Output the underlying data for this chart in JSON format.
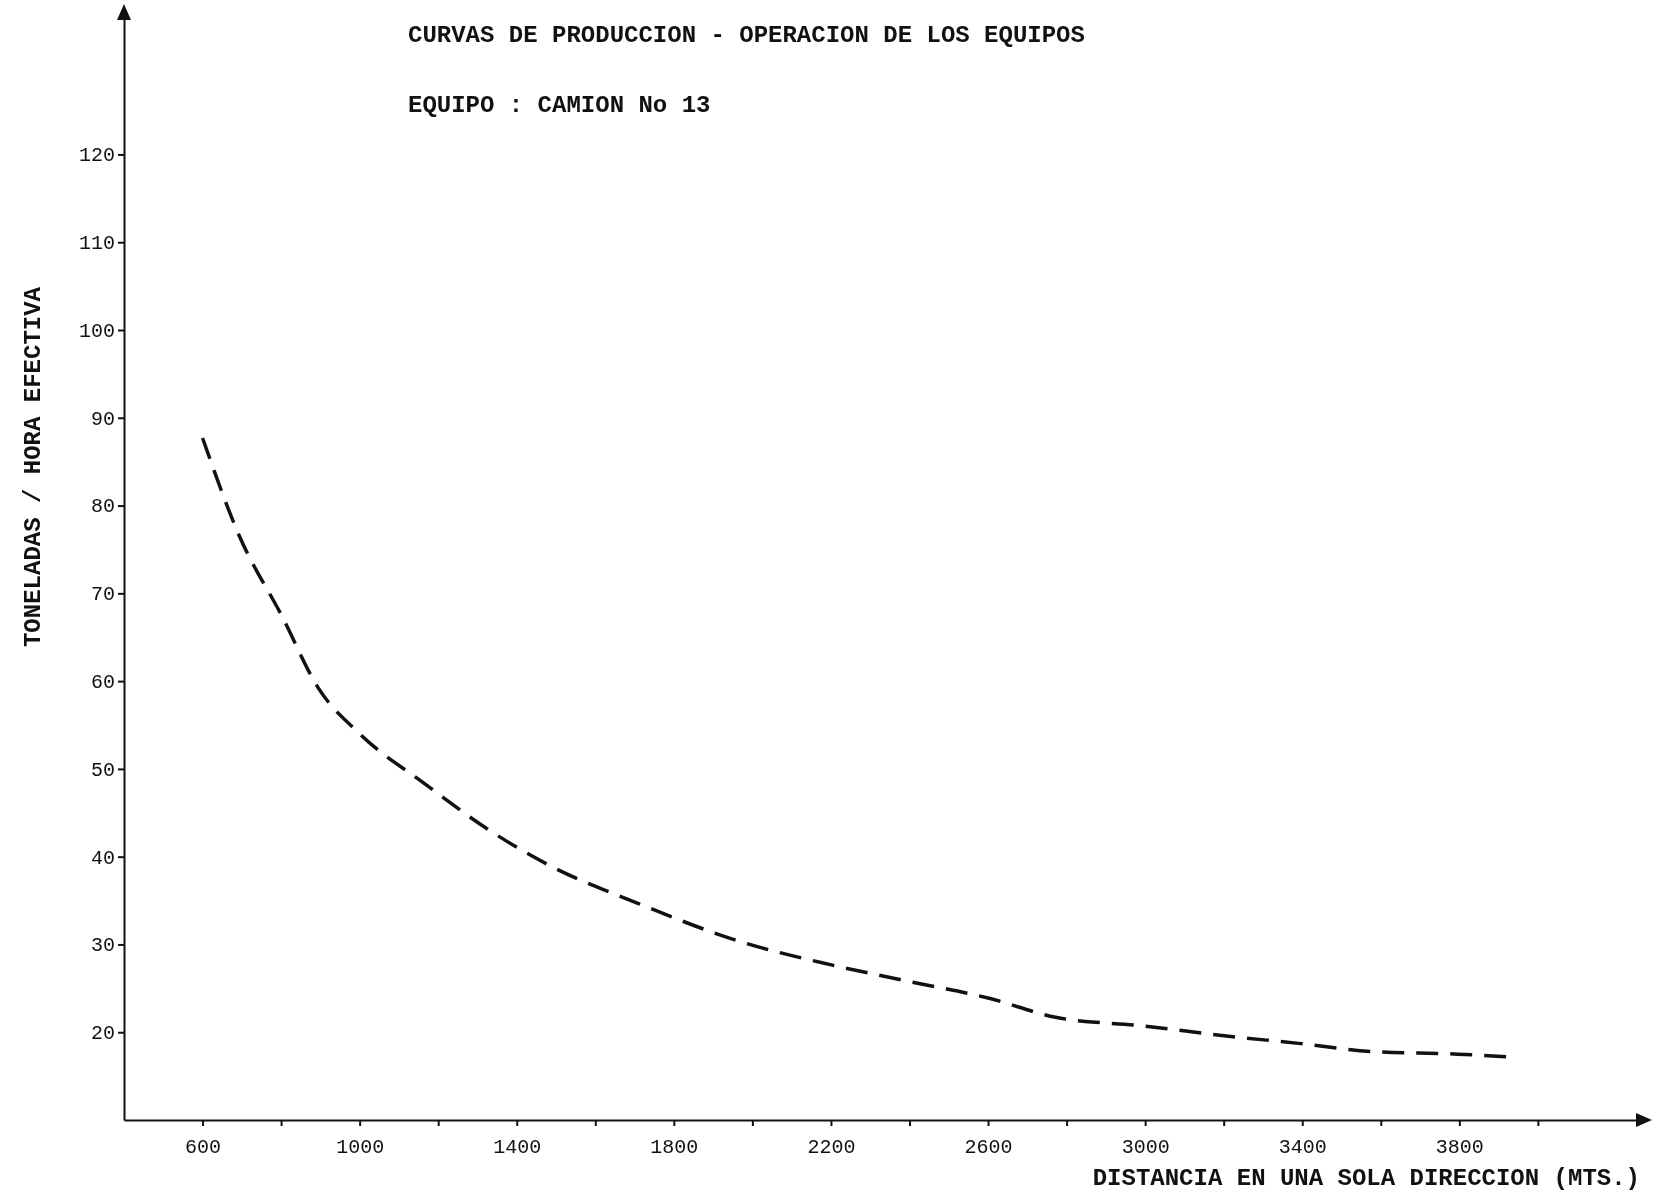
{
  "chart_data": {
    "type": "line",
    "title": "CURVAS DE PRODUCCION - OPERACION DE LOS EQUIPOS",
    "subtitle": "EQUIPO :  CAMION  No 13",
    "xlabel": "DISTANCIA EN UNA SOLA DIRECCION (MTS.)",
    "ylabel": "TONELADAS / HORA  EFECTIVA",
    "xlim": [
      400,
      4260
    ],
    "ylim": [
      10,
      136
    ],
    "xticks": [
      600,
      {
        "value": 800,
        "label": null
      },
      1000,
      {
        "value": 1200,
        "label": null
      },
      1400,
      {
        "value": 1600,
        "label": null
      },
      1800,
      {
        "value": 2000,
        "label": null
      },
      2200,
      {
        "value": 2400,
        "label": null
      },
      2600,
      {
        "value": 2800,
        "label": null
      },
      3000,
      {
        "value": 3200,
        "label": null
      },
      3400,
      {
        "value": 3600,
        "label": null
      },
      3800,
      {
        "value": 4000,
        "label": null
      }
    ],
    "yticks": [
      20,
      30,
      40,
      50,
      60,
      70,
      80,
      90,
      100,
      110,
      120
    ],
    "marker": "none",
    "line_style": "dashed",
    "series": [
      {
        "color": "#111111",
        "x": [
          600,
          694,
          801,
          895,
          1000,
          1166,
          1327,
          1488,
          1702,
          1971,
          2198,
          2397,
          2600,
          2772,
          3000,
          3201,
          3397,
          3576,
          3796,
          3925
        ],
        "values": [
          87.7,
          76.5,
          67.5,
          59.2,
          54,
          48.3,
          43.1,
          38.9,
          34.8,
          30.3,
          27.7,
          25.8,
          23.9,
          21.7,
          20.7,
          19.6,
          18.7,
          17.8,
          17.5,
          17.2
        ]
      }
    ]
  }
}
